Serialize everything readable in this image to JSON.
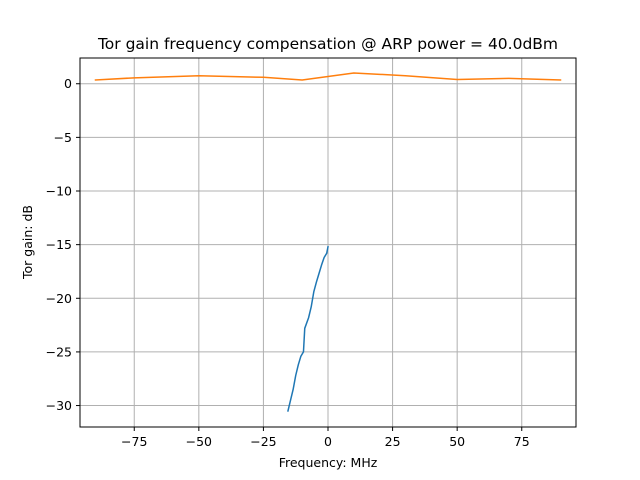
{
  "chart_data": {
    "type": "line",
    "title": "Tor gain frequency compensation @ ARP power = 40.0dBm",
    "xlabel": "Frequency: MHz",
    "ylabel": "Tor gain: dB",
    "xlim": [
      -96,
      96
    ],
    "ylim": [
      -32,
      2.4
    ],
    "xticks": [
      -75,
      -50,
      -25,
      0,
      25,
      50,
      75
    ],
    "yticks": [
      0,
      -5,
      -10,
      -15,
      -20,
      -25,
      -30
    ],
    "grid": true,
    "series": [
      {
        "color": "#1f77b4",
        "x": [
          -15.5,
          -14.5,
          -13.5,
          -12.5,
          -11.5,
          -10.5,
          -9.5,
          -9.0,
          -7.5,
          -6.5,
          -5.5,
          -4.5,
          -3.5,
          -2.5,
          -1.5,
          -0.5,
          0
        ],
        "y": [
          -30.5,
          -29.5,
          -28.5,
          -27.2,
          -26.2,
          -25.4,
          -25.0,
          -22.8,
          -21.8,
          -20.8,
          -19.4,
          -18.5,
          -17.7,
          -16.9,
          -16.2,
          -15.8,
          -15.2
        ]
      },
      {
        "color": "#ff7f0e",
        "x": [
          -90,
          -75,
          -50,
          -25,
          -10,
          10,
          30,
          50,
          70,
          90
        ],
        "y": [
          0.35,
          0.55,
          0.75,
          0.6,
          0.35,
          1.0,
          0.75,
          0.4,
          0.5,
          0.35
        ]
      }
    ]
  }
}
